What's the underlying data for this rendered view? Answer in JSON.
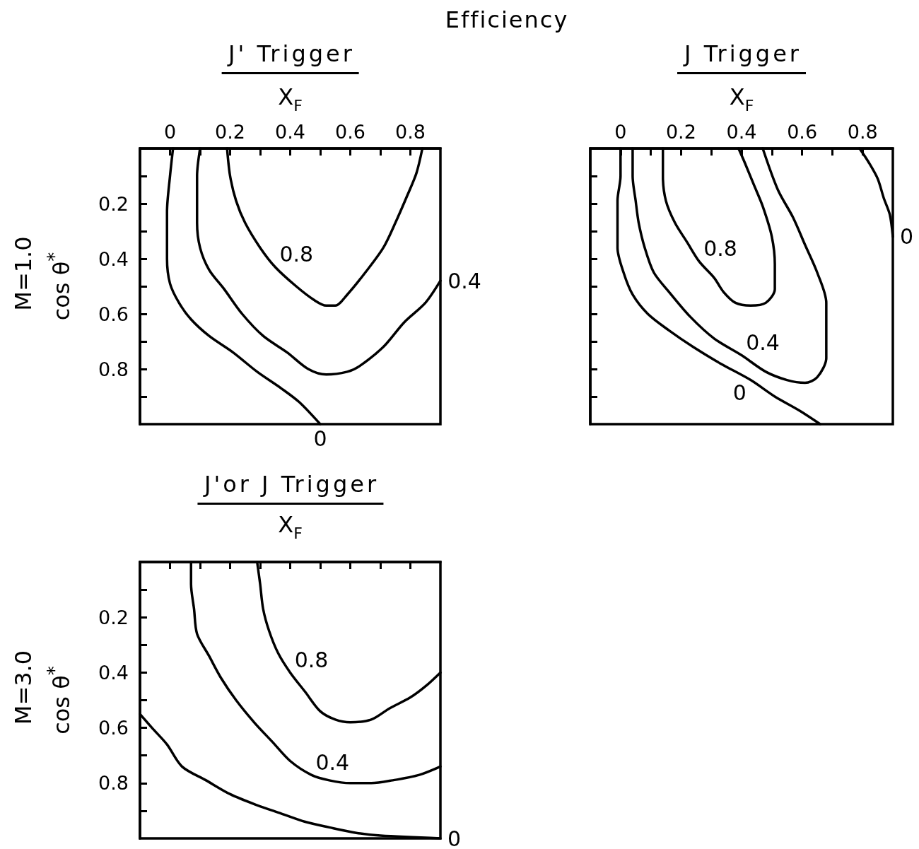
{
  "chart_data": [
    {
      "type": "line",
      "title": "Efficiency",
      "subtitle": "J' Trigger",
      "xlabel": "X$_{F}$",
      "ylabel": "cos θ$^{*}$",
      "xlim": [
        -0.1,
        0.9
      ],
      "xticks": [
        0,
        {
          "value": 0.1,
          "label": null
        },
        0.2,
        {
          "value": 0.3,
          "label": null
        },
        0.4,
        {
          "value": 0.5,
          "label": null
        },
        0.6,
        {
          "value": 0.7,
          "label": null
        },
        0.8
      ],
      "ylim": [
        1,
        0
      ],
      "yticks": [
        {
          "value": 0.1,
          "label": null
        },
        0.2,
        {
          "value": 0.3,
          "label": null
        },
        0.4,
        {
          "value": 0.5,
          "label": null
        },
        0.6,
        {
          "value": 0.7,
          "label": null
        },
        0.8,
        {
          "value": 0.9,
          "label": null
        }
      ],
      "marker": "none",
      "line_style": "solid",
      "series": [
        {
          "color": "#000000",
          "x": [
            0.01,
            0.0,
            -0.01,
            -0.01,
            -0.01,
            0.0,
            0.03,
            0.07,
            0.13,
            0.21,
            0.29,
            0.37,
            0.43,
            0.5
          ],
          "values": [
            0,
            0.1,
            0.23,
            0.32,
            0.4,
            0.49,
            0.56,
            0.62,
            0.68,
            0.74,
            0.81,
            0.87,
            0.92,
            1.0
          ]
        },
        {
          "color": "#000000",
          "x": [
            0.1,
            0.09,
            0.09,
            0.09,
            0.1,
            0.13,
            0.18,
            0.24,
            0.31,
            0.39,
            0.46,
            0.52,
            0.59,
            0.63,
            0.71,
            0.78,
            0.85,
            0.9
          ],
          "values": [
            0,
            0.1,
            0.19,
            0.27,
            0.36,
            0.44,
            0.51,
            0.6,
            0.68,
            0.74,
            0.8,
            0.82,
            0.81,
            0.79,
            0.72,
            0.63,
            0.56,
            0.48
          ]
        },
        {
          "color": "#000000",
          "x": [
            0.19,
            0.2,
            0.22,
            0.25,
            0.3,
            0.35,
            0.42,
            0.48,
            0.52,
            0.55,
            0.59,
            0.65,
            0.71,
            0.75,
            0.79,
            0.82,
            0.84
          ],
          "values": [
            0,
            0.1,
            0.19,
            0.27,
            0.36,
            0.43,
            0.5,
            0.55,
            0.57,
            0.57,
            0.53,
            0.45,
            0.36,
            0.27,
            0.17,
            0.09,
            0
          ]
        }
      ],
      "annotations": [
        "M=1.0",
        {
          "text": "0.8",
          "x": 0.35,
          "y": 0.43
        },
        {
          "text": "0.4",
          "x": 0.9,
          "y": 0.48
        },
        {
          "text": "0",
          "x": 0.5,
          "y": 1.0
        }
      ]
    },
    {
      "type": "line",
      "subtitle": "J Trigger",
      "xlabel": "X$_{F}$",
      "xlim": [
        -0.1,
        0.9
      ],
      "xticks": [
        0,
        {
          "value": 0.1,
          "label": null
        },
        0.2,
        {
          "value": 0.3,
          "label": null
        },
        0.4,
        {
          "value": 0.5,
          "label": null
        },
        0.6,
        {
          "value": 0.7,
          "label": null
        },
        0.8
      ],
      "ylim": [
        1,
        0
      ],
      "yticks": [
        {
          "value": 0.1,
          "label": null
        },
        {
          "value": 0.2,
          "label": null
        },
        {
          "value": 0.3,
          "label": null
        },
        {
          "value": 0.4,
          "label": null
        },
        {
          "value": 0.5,
          "label": null
        },
        {
          "value": 0.6,
          "label": null
        },
        {
          "value": 0.7,
          "label": null
        },
        {
          "value": 0.8,
          "label": null
        },
        {
          "value": 0.9,
          "label": null
        }
      ],
      "tick_labels": "x",
      "marker": "none",
      "line_style": "solid",
      "series": [
        {
          "color": "#000000",
          "x": [
            0.0,
            0.0,
            -0.01,
            -0.01,
            -0.01,
            0.01,
            0.04,
            0.09,
            0.16,
            0.24,
            0.33,
            0.43,
            0.51,
            0.59,
            0.66
          ],
          "values": [
            0,
            0.1,
            0.19,
            0.27,
            0.36,
            0.45,
            0.53,
            0.6,
            0.66,
            0.72,
            0.78,
            0.84,
            0.9,
            0.95,
            1.0
          ]
        },
        {
          "color": "#000000",
          "x": [
            0.04,
            0.04,
            0.05,
            0.06,
            0.08,
            0.11,
            0.16,
            0.23,
            0.31,
            0.4,
            0.48,
            0.55,
            0.61,
            0.65,
            0.68,
            0.68,
            0.68,
            0.65,
            0.61,
            0.57,
            0.52,
            0.47
          ],
          "values": [
            0,
            0.1,
            0.19,
            0.27,
            0.36,
            0.45,
            0.52,
            0.61,
            0.69,
            0.75,
            0.81,
            0.84,
            0.85,
            0.83,
            0.76,
            0.66,
            0.56,
            0.45,
            0.35,
            0.25,
            0.15,
            0
          ]
        },
        {
          "color": "#000000",
          "x": [
            0.14,
            0.14,
            0.15,
            0.18,
            0.22,
            0.26,
            0.31,
            0.34,
            0.38,
            0.43,
            0.48,
            0.51,
            0.51,
            0.5,
            0.47,
            0.44,
            0.41,
            0.39
          ],
          "values": [
            0,
            0.1,
            0.19,
            0.27,
            0.34,
            0.41,
            0.47,
            0.52,
            0.56,
            0.57,
            0.56,
            0.51,
            0.42,
            0.32,
            0.21,
            0.13,
            0.05,
            0
          ]
        },
        {
          "color": "#000000",
          "x": [
            0.79,
            0.82,
            0.85,
            0.87,
            0.89,
            0.9
          ],
          "values": [
            0,
            0.05,
            0.11,
            0.18,
            0.24,
            0.32
          ]
        }
      ],
      "annotations": [
        {
          "text": "0.8",
          "x": 0.26,
          "y": 0.41
        },
        {
          "text": "0.4",
          "x": 0.4,
          "y": 0.75
        },
        {
          "text": "0",
          "x": 0.43,
          "y": 0.84
        },
        {
          "text": "0",
          "x": 0.9,
          "y": 0.32
        }
      ]
    },
    {
      "type": "line",
      "subtitle": "J'or J Trigger",
      "xlabel": "X$_{F}$",
      "ylabel": "cos θ$^{*}$",
      "xlim": [
        -0.1,
        0.9
      ],
      "xticks": [
        {
          "value": 0,
          "label": null
        },
        {
          "value": 0.1,
          "label": null
        },
        {
          "value": 0.2,
          "label": null
        },
        {
          "value": 0.3,
          "label": null
        },
        {
          "value": 0.4,
          "label": null
        },
        {
          "value": 0.5,
          "label": null
        },
        {
          "value": 0.6,
          "label": null
        },
        {
          "value": 0.7,
          "label": null
        },
        {
          "value": 0.8,
          "label": null
        }
      ],
      "ylim": [
        1,
        0
      ],
      "yticks": [
        {
          "value": 0.1,
          "label": null
        },
        0.2,
        {
          "value": 0.3,
          "label": null
        },
        0.4,
        {
          "value": 0.5,
          "label": null
        },
        0.6,
        {
          "value": 0.7,
          "label": null
        },
        0.8,
        {
          "value": 0.9,
          "label": null
        }
      ],
      "tick_labels": "y",
      "marker": "none",
      "line_style": "solid",
      "series": [
        {
          "color": "#000000",
          "x": [
            -0.1,
            -0.06,
            -0.01,
            0.04,
            0.12,
            0.2,
            0.29,
            0.37,
            0.45,
            0.53,
            0.62,
            0.7,
            0.9
          ],
          "values": [
            0.55,
            0.6,
            0.66,
            0.74,
            0.79,
            0.84,
            0.88,
            0.91,
            0.94,
            0.96,
            0.98,
            0.99,
            1.0
          ]
        },
        {
          "color": "#000000",
          "x": [
            0.07,
            0.07,
            0.08,
            0.09,
            0.13,
            0.17,
            0.22,
            0.28,
            0.34,
            0.4,
            0.47,
            0.53,
            0.6,
            0.67,
            0.74,
            0.83,
            0.9
          ],
          "values": [
            0,
            0.08,
            0.17,
            0.26,
            0.34,
            0.42,
            0.5,
            0.58,
            0.65,
            0.72,
            0.77,
            0.79,
            0.8,
            0.8,
            0.79,
            0.77,
            0.74
          ]
        },
        {
          "color": "#000000",
          "x": [
            0.29,
            0.3,
            0.31,
            0.33,
            0.36,
            0.4,
            0.45,
            0.5,
            0.55,
            0.6,
            0.67,
            0.73,
            0.8,
            0.85,
            0.9
          ],
          "values": [
            0,
            0.08,
            0.17,
            0.25,
            0.33,
            0.4,
            0.47,
            0.54,
            0.57,
            0.58,
            0.57,
            0.53,
            0.49,
            0.45,
            0.4
          ]
        }
      ],
      "annotations": [
        "M=3.0",
        {
          "text": "0.8",
          "x": 0.4,
          "y": 0.4
        },
        {
          "text": "0.4",
          "x": 0.47,
          "y": 0.77
        },
        {
          "text": "0",
          "x": 0.9,
          "y": 1.0
        }
      ]
    }
  ]
}
